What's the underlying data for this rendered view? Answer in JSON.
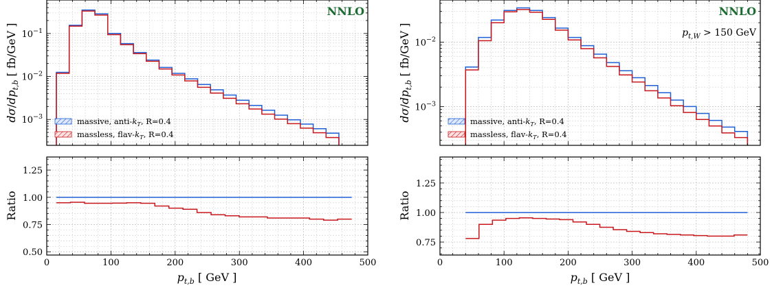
{
  "colors": {
    "massive": "#1f5fd6",
    "massless": "#c8171c",
    "order_label": "#1e6b33"
  },
  "chart_data": [
    {
      "type": "line",
      "order_label": "NNLO",
      "annotation": "",
      "xlabel": "p_{t,b} [ GeV ]",
      "ylabel": "dσ/dp_{t,b} [ fb/GeV ]",
      "ratio_ylabel": "Ratio",
      "xlim": [
        0,
        500
      ],
      "ylim": [
        0.00025,
        0.6
      ],
      "yscale": "log",
      "ratio_ylim": [
        0.47,
        1.37
      ],
      "grid": true,
      "legend_location": "lower-left",
      "xticks": [
        "0",
        "100",
        "200",
        "300",
        "400",
        "500"
      ],
      "yticks": [
        "10^-3",
        "10^-2",
        "10^-1"
      ],
      "ratio_yticks": [
        "0.50",
        "0.75",
        "1.00",
        "1.25"
      ],
      "bin_edges": [
        15,
        35,
        55,
        75,
        95,
        115,
        135,
        155,
        175,
        195,
        215,
        235,
        255,
        275,
        295,
        315,
        335,
        355,
        375,
        395,
        415,
        435,
        455,
        475
      ],
      "series": [
        {
          "name": "massive, anti-k_T, R=0.4",
          "values": [
            0.0125,
            0.155,
            0.35,
            0.285,
            0.1,
            0.058,
            0.036,
            0.024,
            0.0162,
            0.0118,
            0.0088,
            0.0065,
            0.0049,
            0.0037,
            0.0028,
            0.00212,
            0.00164,
            0.00126,
            0.00098,
            0.00078,
            0.00061,
            0.00048
          ]
        },
        {
          "name": "massless, flav-k_T, R=0.4",
          "values": [
            0.0118,
            0.148,
            0.332,
            0.268,
            0.094,
            0.055,
            0.034,
            0.0226,
            0.0149,
            0.0108,
            0.0079,
            0.0056,
            0.0041,
            0.0031,
            0.00231,
            0.00175,
            0.00133,
            0.00102,
            0.0008,
            0.00063,
            0.00049,
            0.00038
          ]
        }
      ],
      "ratio_values": [
        0.95,
        0.955,
        0.945,
        0.945,
        0.947,
        0.95,
        0.945,
        0.92,
        0.9,
        0.89,
        0.86,
        0.84,
        0.83,
        0.82,
        0.82,
        0.81,
        0.81,
        0.81,
        0.8,
        0.79,
        0.8
      ]
    },
    {
      "type": "line",
      "order_label": "NNLO",
      "annotation": "p_{t,W} > 150 GeV",
      "xlabel": "p_{t,b} [ GeV ]",
      "ylabel": "dσ/dp_{t,b} [ fb/GeV ]",
      "ratio_ylabel": "Ratio",
      "xlim": [
        0,
        500
      ],
      "ylim": [
        0.00025,
        0.045
      ],
      "yscale": "log",
      "ratio_ylim": [
        0.64,
        1.47
      ],
      "grid": true,
      "legend_location": "lower-left",
      "xticks": [
        "0",
        "100",
        "200",
        "300",
        "400",
        "500"
      ],
      "yticks": [
        "10^-3",
        "10^-2"
      ],
      "ratio_yticks": [
        "0.75",
        "1.00",
        "1.25"
      ],
      "bin_edges": [
        40,
        60,
        80,
        100,
        120,
        140,
        160,
        180,
        200,
        220,
        240,
        260,
        280,
        300,
        320,
        340,
        360,
        380,
        400,
        420,
        440,
        460,
        480
      ],
      "series": [
        {
          "name": "massive, anti-k_T, R=0.4",
          "values": [
            0.0041,
            0.0118,
            0.022,
            0.031,
            0.034,
            0.031,
            0.024,
            0.0165,
            0.0118,
            0.0088,
            0.0065,
            0.0048,
            0.0036,
            0.0028,
            0.00212,
            0.00164,
            0.00126,
            0.001,
            0.00078,
            0.00061,
            0.00048,
            0.00041
          ]
        },
        {
          "name": "massless, flav-k_T, R=0.4",
          "values": [
            0.0037,
            0.0105,
            0.02,
            0.0295,
            0.032,
            0.029,
            0.0225,
            0.0153,
            0.0108,
            0.0079,
            0.0057,
            0.0042,
            0.0031,
            0.0024,
            0.00176,
            0.00136,
            0.00103,
            0.00081,
            0.00063,
            0.0005,
            0.00039,
            0.00033
          ]
        }
      ],
      "ratio_values": [
        0.78,
        0.9,
        0.935,
        0.95,
        0.955,
        0.95,
        0.945,
        0.94,
        0.92,
        0.9,
        0.875,
        0.855,
        0.84,
        0.83,
        0.82,
        0.815,
        0.81,
        0.805,
        0.8,
        0.8,
        0.81
      ]
    }
  ]
}
